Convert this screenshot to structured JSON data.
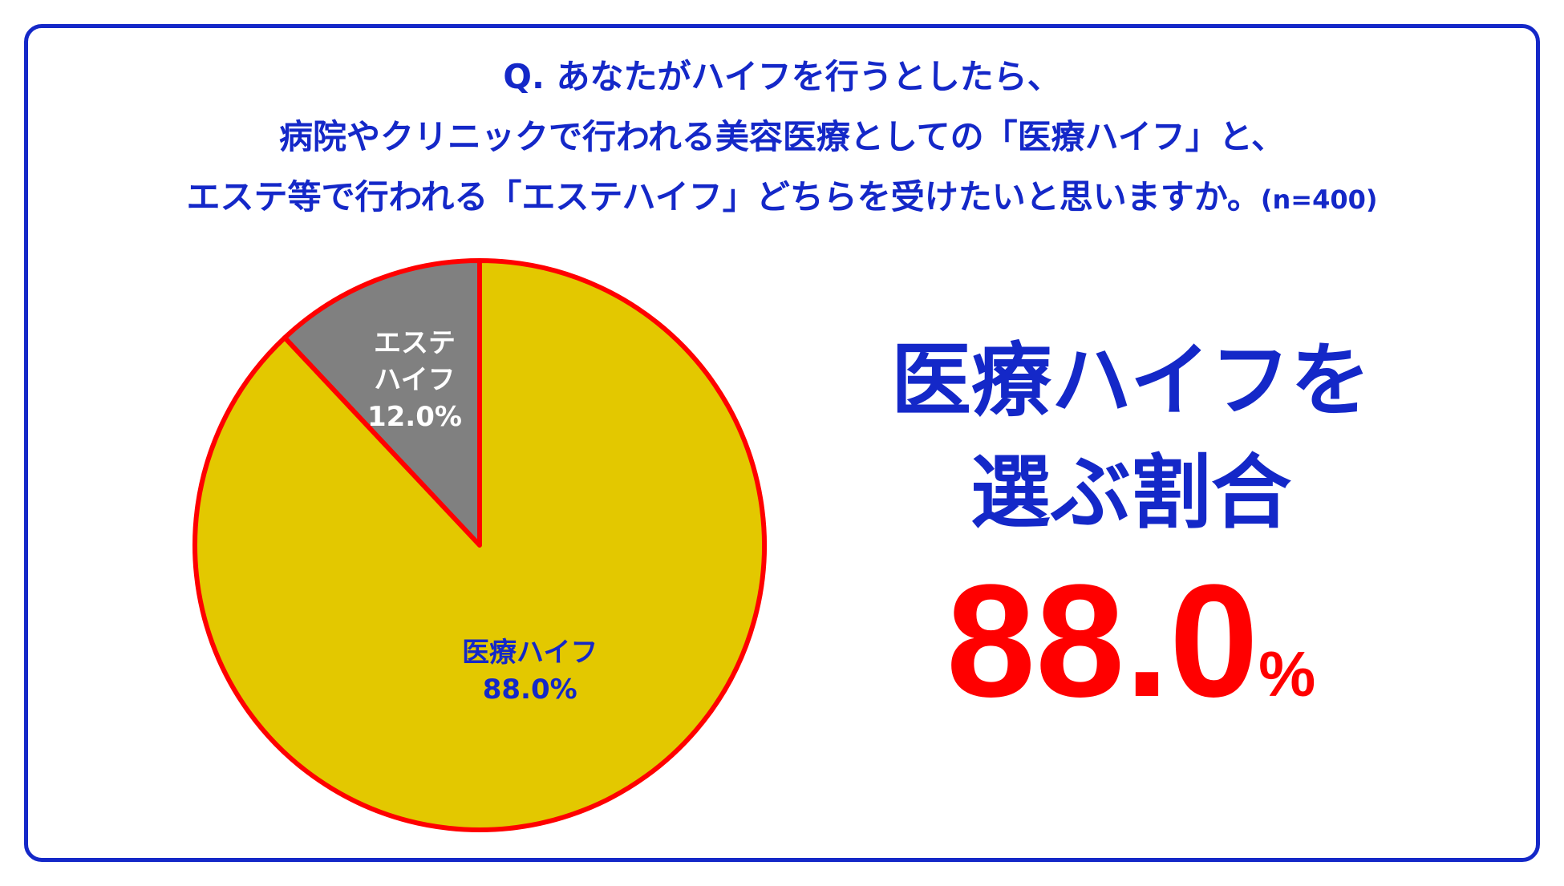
{
  "question": {
    "line1": "Q. あなたがハイフを行うとしたら、",
    "line2": "病院やクリニックで行われる美容医療としての「医療ハイフ」と、",
    "line3": "エステ等で行われる「エステハイフ」どちらを受けたいと思いますか。",
    "sample": "(n=400)"
  },
  "result": {
    "line1": "医療ハイフを",
    "line2": "選ぶ割合",
    "value": "88.0",
    "unit": "%"
  },
  "chart_data": {
    "type": "pie",
    "slices": [
      {
        "label_lines": [
          "エステ",
          "ハイフ"
        ],
        "value": 12.0,
        "value_label": "12.0%",
        "color": "#808080",
        "text_color": "#ffffff"
      },
      {
        "label_lines": [
          "医療ハイフ"
        ],
        "value": 88.0,
        "value_label": "88.0%",
        "color": "#e3c800",
        "text_color": "#1428c8"
      }
    ],
    "edge_color": "#ff0000",
    "start": "12 o'clock",
    "direction": "counter-clockwise"
  },
  "colors": {
    "blue": "#1428c8",
    "red": "#ff0000"
  }
}
